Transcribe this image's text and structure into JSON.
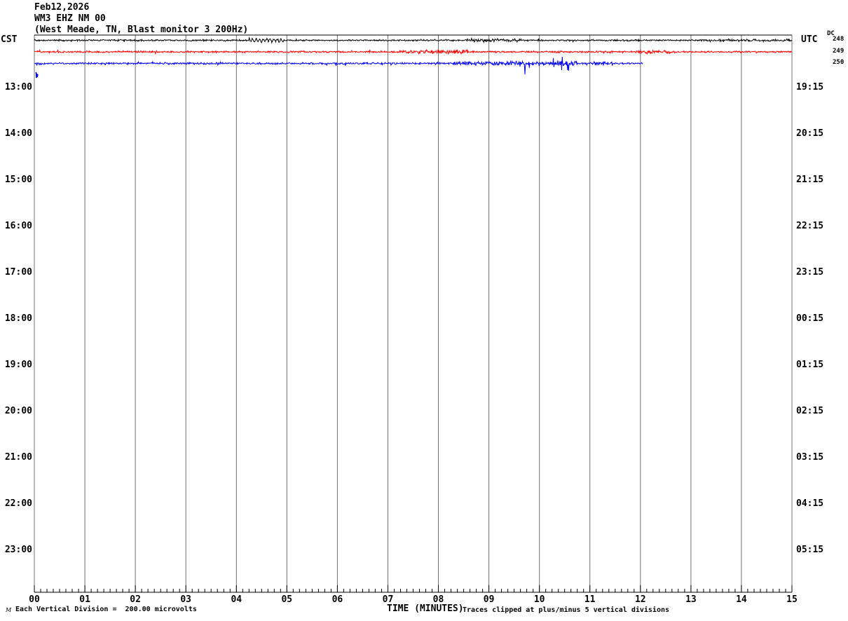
{
  "header": {
    "date": "Feb12,2026",
    "station": "WM3 EHZ NM 00",
    "description": "(West Meade, TN, Blast monitor 3 200Hz)"
  },
  "left_axis": {
    "label": "CST",
    "ticks": [
      "13:00",
      "14:00",
      "15:00",
      "16:00",
      "17:00",
      "18:00",
      "19:00",
      "20:00",
      "21:00",
      "22:00",
      "23:00"
    ]
  },
  "right_axis": {
    "label": "UTC",
    "ticks": [
      "19:15",
      "20:15",
      "21:15",
      "22:15",
      "23:15",
      "00:15",
      "01:15",
      "02:15",
      "03:15",
      "04:15",
      "05:15"
    ]
  },
  "dc_offsets": {
    "label": "DC",
    "values": [
      "248",
      "249",
      "250"
    ]
  },
  "x_axis": {
    "title": "TIME (MINUTES)",
    "ticks": [
      "00",
      "01",
      "02",
      "03",
      "04",
      "05",
      "06",
      "07",
      "08",
      "09",
      "10",
      "11",
      "12",
      "13",
      "14",
      "15"
    ]
  },
  "footer": {
    "watermark": "M",
    "division_note": "Each Vertical Division =  200.00 microvolts",
    "clip_note": "Traces clipped at plus/minus 5 vertical divisions"
  },
  "colors": {
    "trace1": "#000000",
    "trace2": "#ff0000",
    "trace3": "#0000ff",
    "grid": "#707070",
    "border": "#000000",
    "background": "#ffffff"
  },
  "chart_data": {
    "type": "line",
    "kind": "seismogram-helicorder",
    "title": "WM3 EHZ NM 00 (West Meade, TN, Blast monitor 3 200Hz) Feb12,2026",
    "xlabel": "TIME (MINUTES)",
    "xlim": [
      0,
      15
    ],
    "minutes_per_row": 15,
    "grid": "vertical-every-minute",
    "minor_ticks_per_minute": 8,
    "x_tick_labels": [
      "00",
      "01",
      "02",
      "03",
      "04",
      "05",
      "06",
      "07",
      "08",
      "09",
      "10",
      "11",
      "12",
      "13",
      "14",
      "15"
    ],
    "left_time_labels": [
      "13:00",
      "14:00",
      "15:00",
      "16:00",
      "17:00",
      "18:00",
      "19:00",
      "20:00",
      "21:00",
      "22:00",
      "23:00"
    ],
    "right_time_labels": [
      "19:15",
      "20:15",
      "21:15",
      "22:15",
      "23:15",
      "00:15",
      "01:15",
      "02:15",
      "03:15",
      "04:15",
      "05:15"
    ],
    "microvolts_per_division": 200.0,
    "clip_divisions": 5,
    "series": [
      {
        "name": "trace-row1-black",
        "color": "#000000",
        "dc": "248",
        "row": 0,
        "start_min": 0,
        "end_min": 15,
        "noise_amp": 1.6,
        "events": [
          {
            "start": 4.25,
            "end": 4.95,
            "amp": 4,
            "smooth": true
          },
          {
            "start": 8.55,
            "end": 9.65,
            "amp": 3.2
          },
          {
            "start": 13.2,
            "end": 15.0,
            "amp": 2.2
          }
        ]
      },
      {
        "name": "trace-row2-red",
        "color": "#ff0000",
        "dc": "249",
        "row": 1,
        "start_min": 0,
        "end_min": 15,
        "noise_amp": 1.8,
        "events": [
          {
            "start": 7.3,
            "end": 8.6,
            "amp": 4.5
          },
          {
            "start": 10.3,
            "end": 10.5,
            "amp": 8
          },
          {
            "start": 11.9,
            "end": 12.6,
            "amp": 3
          }
        ]
      },
      {
        "name": "trace-row3-blue",
        "color": "#0000ff",
        "dc": "250",
        "row": 2,
        "start_min": 0,
        "end_min": 12.05,
        "noise_amp": 1.9,
        "events": [
          {
            "start": 8.3,
            "end": 9.35,
            "amp": 4
          },
          {
            "start": 9.35,
            "end": 9.85,
            "amp": 25
          },
          {
            "start": 9.85,
            "end": 10.25,
            "amp": 7
          },
          {
            "start": 10.25,
            "end": 10.75,
            "amp": 29
          },
          {
            "start": 11.1,
            "end": 11.45,
            "amp": 11
          }
        ]
      }
    ],
    "start_marker": {
      "color": "#0000ff",
      "points": [
        [
          51.5,
          103
        ],
        [
          52,
          111
        ],
        [
          52.5,
          105
        ],
        [
          53,
          110
        ],
        [
          53.5,
          106
        ],
        [
          54,
          108
        ]
      ]
    }
  }
}
